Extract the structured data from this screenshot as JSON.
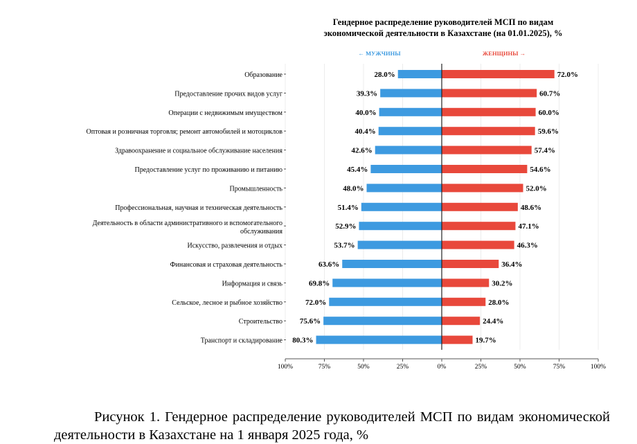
{
  "chart_data": {
    "type": "bar",
    "orientation": "horizontal-diverging",
    "title_line1": "Гендерное распределение руководителей МСП по видам",
    "title_line2": "экономической деятельности в Казахстане (на 01.01.2025), %",
    "categories": [
      "Образование",
      "Предоставление прочих видов услуг",
      "Операции с недвижимым имуществом",
      "Оптовая и розничная торговля; ремонт автомобилей и мотоциклов",
      "Здравоохранение и социальное обслуживание населения",
      "Предоставление услуг по проживанию и питанию",
      "Промышленность",
      "Профессиональная, научная и техническая деятельность",
      "Деятельность в области административного и вспомогательного обслуживания",
      "Искусство, развлечения и отдых",
      "Финансовая и страховая деятельность",
      "Информация и связь",
      "Сельское, лесное и рыбное хозяйство",
      "Строительство",
      "Транспорт и складирование"
    ],
    "series": [
      {
        "name": "← МУЖЧИНЫ",
        "color": "#3d9ae0",
        "values": [
          28.0,
          39.3,
          40.0,
          40.4,
          42.6,
          45.4,
          48.0,
          51.4,
          52.9,
          53.7,
          63.6,
          69.8,
          72.0,
          75.6,
          80.3
        ]
      },
      {
        "name": "ЖЕНЩИНЫ →",
        "color": "#e8483b",
        "values": [
          72.0,
          60.7,
          60.0,
          59.6,
          57.4,
          54.6,
          52.0,
          48.6,
          47.1,
          46.3,
          36.4,
          30.2,
          28.0,
          24.4,
          19.7
        ]
      }
    ],
    "x_ticks": [
      "100%",
      "75%",
      "50%",
      "25%",
      "0%",
      "25%",
      "50%",
      "75%",
      "100%"
    ],
    "xlim": [
      -100,
      100
    ],
    "grid": true,
    "legend_placement": "top"
  },
  "caption": {
    "text": "Рисунок 1. Гендерное распределение руководителей МСП по видам экономической деятельности в Казахстане на 1 января 2025 года, %"
  }
}
